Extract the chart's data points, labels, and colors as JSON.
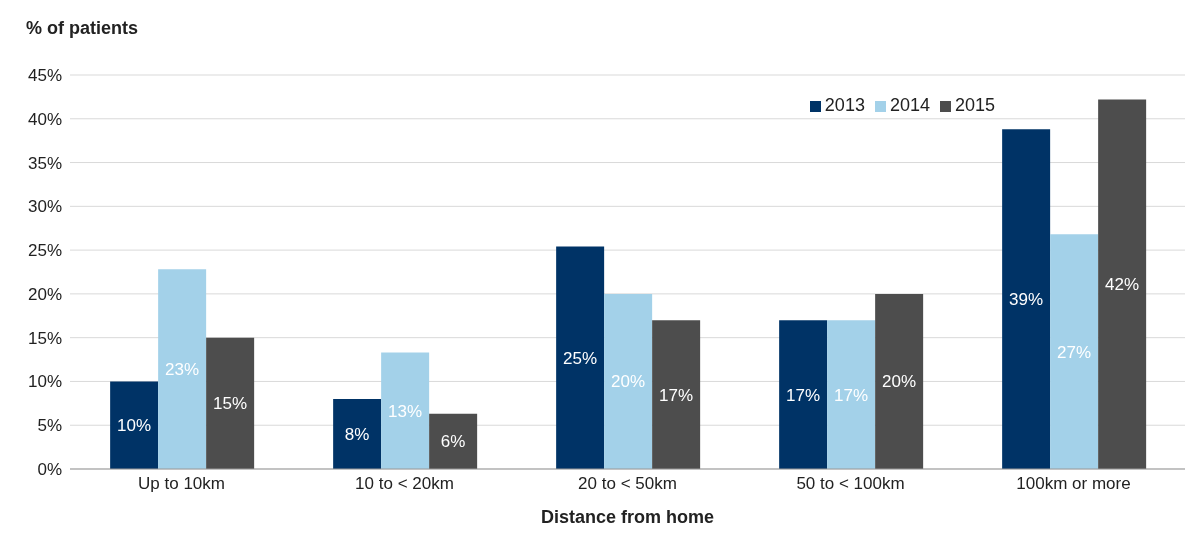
{
  "chart_data": {
    "type": "bar",
    "ylabel": "% of patients",
    "xlabel": "Distance from home",
    "categories": [
      "Up to 10km",
      "10 to < 20km",
      "20 to < 50km",
      "50 to < 100km",
      "100km or more"
    ],
    "series": [
      {
        "name": "2013",
        "color": "#003366",
        "values": [
          10,
          8,
          25.4,
          17,
          38.8
        ],
        "value_labels": [
          "10%",
          "8%",
          "25%",
          "17%",
          "39%"
        ]
      },
      {
        "name": "2014",
        "color": "#a3d1e9",
        "values": [
          22.8,
          13.3,
          20,
          17,
          26.8
        ],
        "value_labels": [
          "23%",
          "13%",
          "20%",
          "17%",
          "27%"
        ]
      },
      {
        "name": "2015",
        "color": "#4d4d4d",
        "values": [
          15,
          6.3,
          17,
          20,
          42.2
        ],
        "value_labels": [
          "15%",
          "6%",
          "17%",
          "20%",
          "42%"
        ]
      }
    ],
    "ylim": [
      0,
      45
    ],
    "yticks": [
      {
        "value": 0,
        "label": "0%"
      },
      {
        "value": 5,
        "label": "5%"
      },
      {
        "value": 10,
        "label": "10%"
      },
      {
        "value": 15,
        "label": "15%"
      },
      {
        "value": 20,
        "label": "20%"
      },
      {
        "value": 25,
        "label": "25%"
      },
      {
        "value": 30,
        "label": "30%"
      },
      {
        "value": 35,
        "label": "35%"
      },
      {
        "value": 40,
        "label": "40%"
      },
      {
        "value": 45,
        "label": "45%"
      }
    ],
    "grid": "y",
    "legend": "top right"
  }
}
